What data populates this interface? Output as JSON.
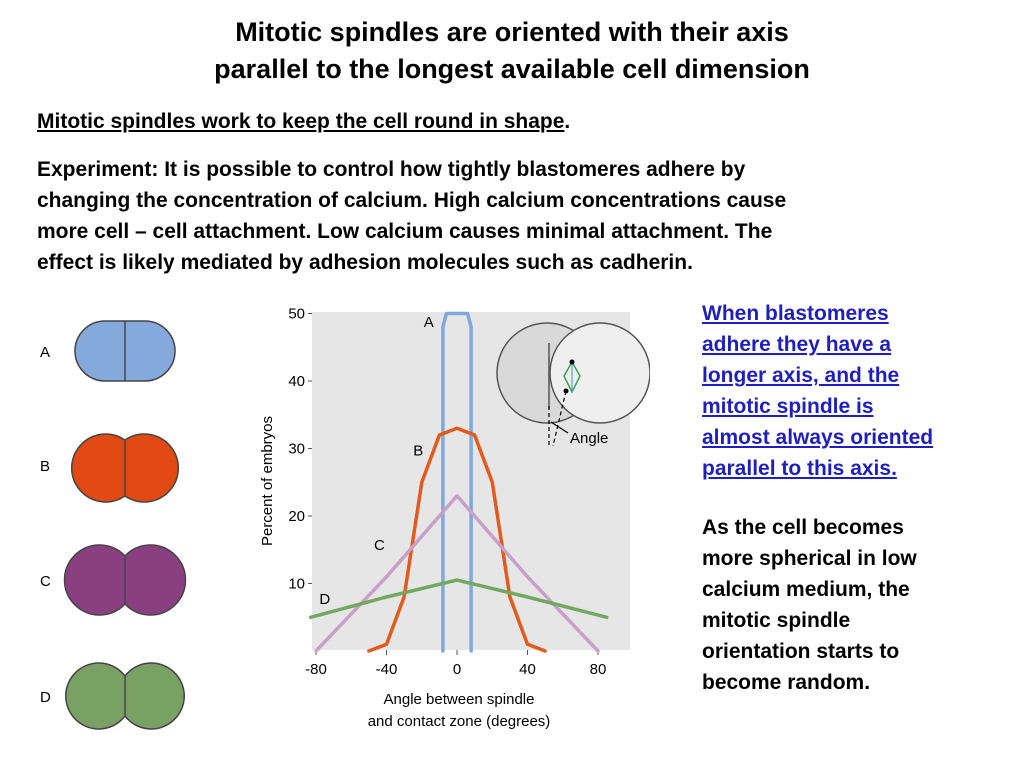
{
  "title": {
    "line1": "Mitotic spindles are oriented with their axis",
    "line2": "parallel to the longest available cell dimension"
  },
  "subhead": {
    "text": "Mitotic spindles work to keep the cell round in shape",
    "suffix": "."
  },
  "paragraph": {
    "lines": [
      "Experiment: It is possible to control how tightly blastomeres adhere by",
      "changing the concentration of calcium. High calcium concentrations cause",
      "more cell – cell attachment. Low calcium causes minimal attachment. The",
      "effect is likely mediated by adhesion molecules such as cadherin."
    ]
  },
  "note_blue": {
    "lines": [
      "When blastomeres",
      "adhere they have a",
      "longer axis, and the",
      "mitotic spindle is",
      "almost always oriented",
      "parallel to this axis."
    ]
  },
  "note_black": {
    "lines": [
      "As the cell becomes",
      "more spherical in low",
      "calcium medium, the",
      "mitotic spindle",
      "orientation starts to",
      "become random."
    ]
  },
  "cells": [
    {
      "label": "A",
      "color": "#86a9dc",
      "overlap": "high"
    },
    {
      "label": "B",
      "color": "#e24a14",
      "overlap": "medium"
    },
    {
      "label": "C",
      "color": "#8a3f80",
      "overlap": "low"
    },
    {
      "label": "D",
      "color": "#7aa164",
      "overlap": "minimal"
    }
  ],
  "chart_data": {
    "type": "line",
    "xlabel_line1": "Angle between spindle",
    "xlabel_line2": "and contact zone (degrees)",
    "ylabel": "Percent of embryos",
    "xlim": [
      -90,
      90
    ],
    "ylim": [
      0,
      50
    ],
    "x_ticks": [
      "-80",
      "-40",
      "0",
      "40",
      "80"
    ],
    "y_ticks": [
      "10",
      "20",
      "30",
      "40",
      "50"
    ],
    "inset_label": "Angle",
    "series": [
      {
        "name": "A",
        "color": "#7fa8dc",
        "x": [
          -8,
          -8,
          -6,
          0,
          6,
          8,
          8
        ],
        "y": [
          0,
          48,
          50,
          50,
          50,
          48,
          0
        ]
      },
      {
        "name": "B",
        "color": "#e25a1c",
        "x": [
          -50,
          -40,
          -30,
          -20,
          -10,
          0,
          10,
          20,
          30,
          40,
          50
        ],
        "y": [
          0,
          1,
          8,
          25,
          32,
          33,
          32,
          25,
          8,
          1,
          0
        ]
      },
      {
        "name": "C",
        "color": "#c8a0c8",
        "x": [
          -80,
          -40,
          0,
          40,
          80
        ],
        "y": [
          0,
          11,
          23,
          11,
          0
        ]
      },
      {
        "name": "D",
        "color": "#74a860",
        "x": [
          -83,
          -40,
          0,
          40,
          85
        ],
        "y": [
          5,
          8,
          10.5,
          8,
          5
        ]
      }
    ],
    "series_labels": [
      {
        "name": "A",
        "x": -16,
        "y": 48
      },
      {
        "name": "B",
        "x": -22,
        "y": 29
      },
      {
        "name": "C",
        "x": -44,
        "y": 15
      },
      {
        "name": "D",
        "x": -75,
        "y": 7
      }
    ]
  }
}
